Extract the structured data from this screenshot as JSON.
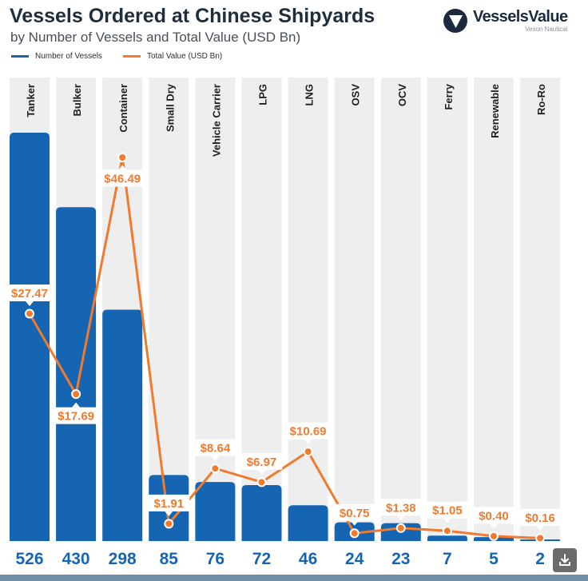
{
  "header": {
    "title": "Vessels Ordered at Chinese Shipyards",
    "subtitle": "by Number of Vessels and Total Value (USD Bn)"
  },
  "legend": {
    "vessels_label": "Number of Vessels",
    "value_label": "Total Value (USD Bn)"
  },
  "brand": {
    "name": "VesselsValue",
    "sub": "Veson Nautical",
    "icon": "play-triangle-icon"
  },
  "colors": {
    "bar": "#1565b3",
    "line": "#f07b2e",
    "column_bg": "#eeeeee",
    "value_text": "#1565b3"
  },
  "chart_data": {
    "type": "bar",
    "categories": [
      "Tanker",
      "Bulker",
      "Container",
      "Small Dry",
      "Vehicle Carrier",
      "LPG",
      "LNG",
      "OSV",
      "OCV",
      "Ferry",
      "Renewable",
      "Ro-Ro"
    ],
    "series": [
      {
        "name": "Number of Vessels",
        "type": "bar",
        "values": [
          526,
          430,
          298,
          85,
          76,
          72,
          46,
          24,
          23,
          7,
          5,
          2
        ],
        "labels": [
          "526",
          "430",
          "298",
          "85",
          "76",
          "72",
          "46",
          "24",
          "23",
          "7",
          "5",
          "2"
        ]
      },
      {
        "name": "Total Value (USD Bn)",
        "type": "line",
        "values": [
          27.47,
          17.69,
          46.49,
          1.91,
          8.64,
          6.97,
          10.69,
          0.75,
          1.38,
          1.05,
          0.4,
          0.16
        ],
        "labels": [
          "$27.47",
          "$17.69",
          "$46.49",
          "$1.91",
          "$8.64",
          "$6.97",
          "$10.69",
          "$0.75",
          "$1.38",
          "$1.05",
          "$0.40",
          "$0.16"
        ]
      }
    ],
    "grid": false,
    "legend_position": "top-left"
  },
  "download_button": {
    "icon": "download-icon"
  }
}
